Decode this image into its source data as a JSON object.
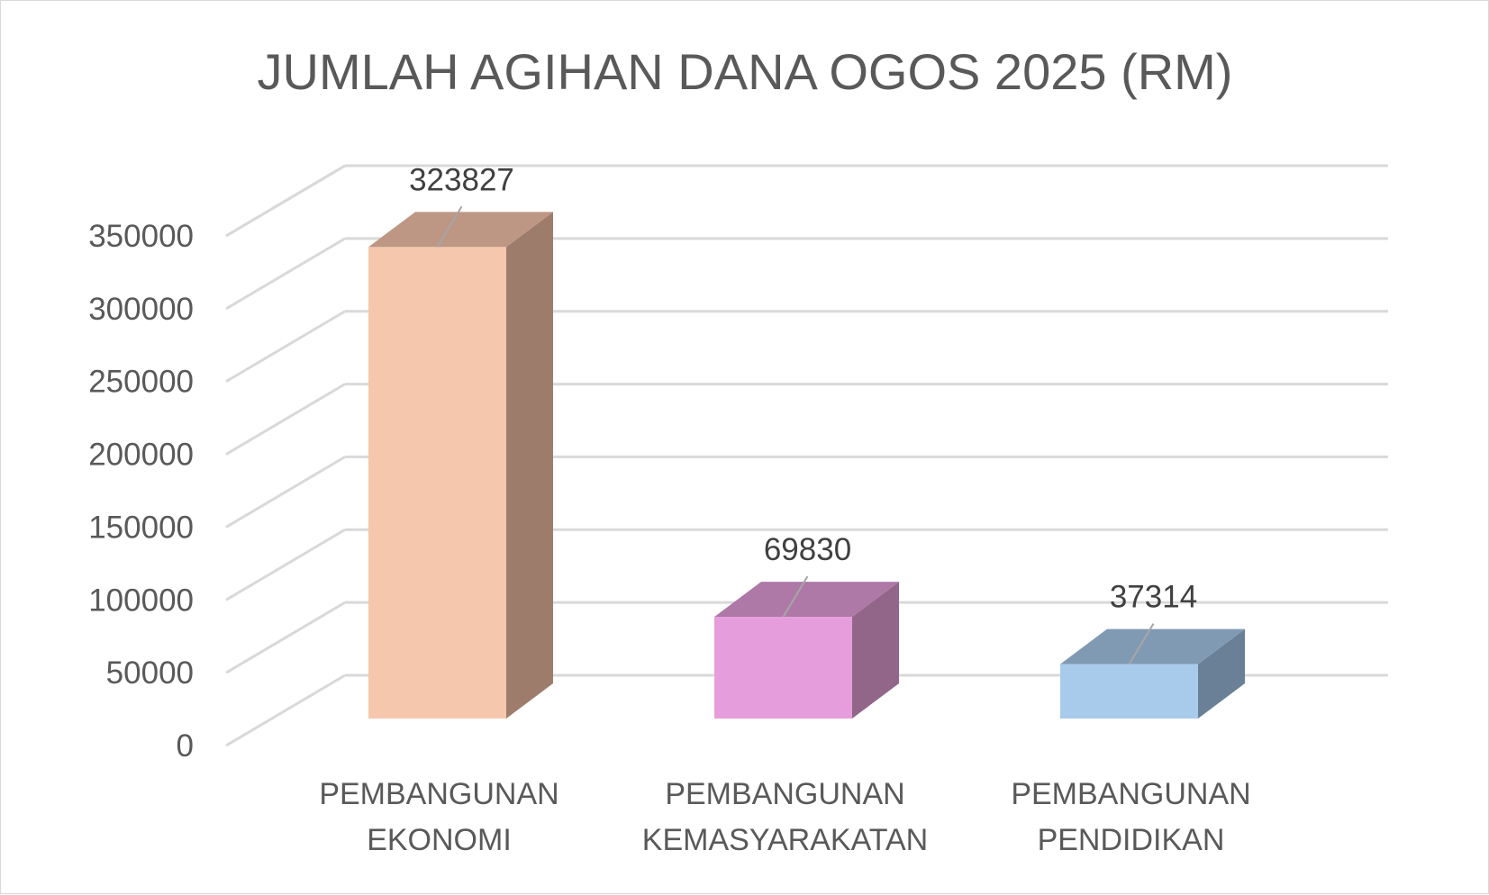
{
  "chart_data": {
    "type": "bar",
    "title": "JUMLAH AGIHAN DANA OGOS 2025 (RM)",
    "categories": [
      [
        "PEMBANGUNAN",
        "EKONOMI"
      ],
      [
        "PEMBANGUNAN",
        "KEMASYARAKATAN"
      ],
      [
        "PEMBANGUNAN",
        "PENDIDIKAN"
      ]
    ],
    "values": [
      323827,
      69830,
      37314
    ],
    "data_labels": [
      "323827",
      "69830",
      "37314"
    ],
    "ylim": [
      0,
      350000
    ],
    "y_ticks": [
      "0",
      "50000",
      "100000",
      "150000",
      "200000",
      "250000",
      "300000",
      "350000"
    ],
    "grid": true,
    "three_d": true,
    "legend": "none",
    "colors": [
      {
        "front": "#f5c7ad",
        "top": "#bd9784",
        "side": "#9e7c6c"
      },
      {
        "front": "#e69ddc",
        "top": "#ae78a7",
        "side": "#926689"
      },
      {
        "front": "#a8caeb",
        "top": "#809ab3",
        "side": "#6a8097"
      }
    ],
    "grid_color": "#d9d9d9"
  }
}
